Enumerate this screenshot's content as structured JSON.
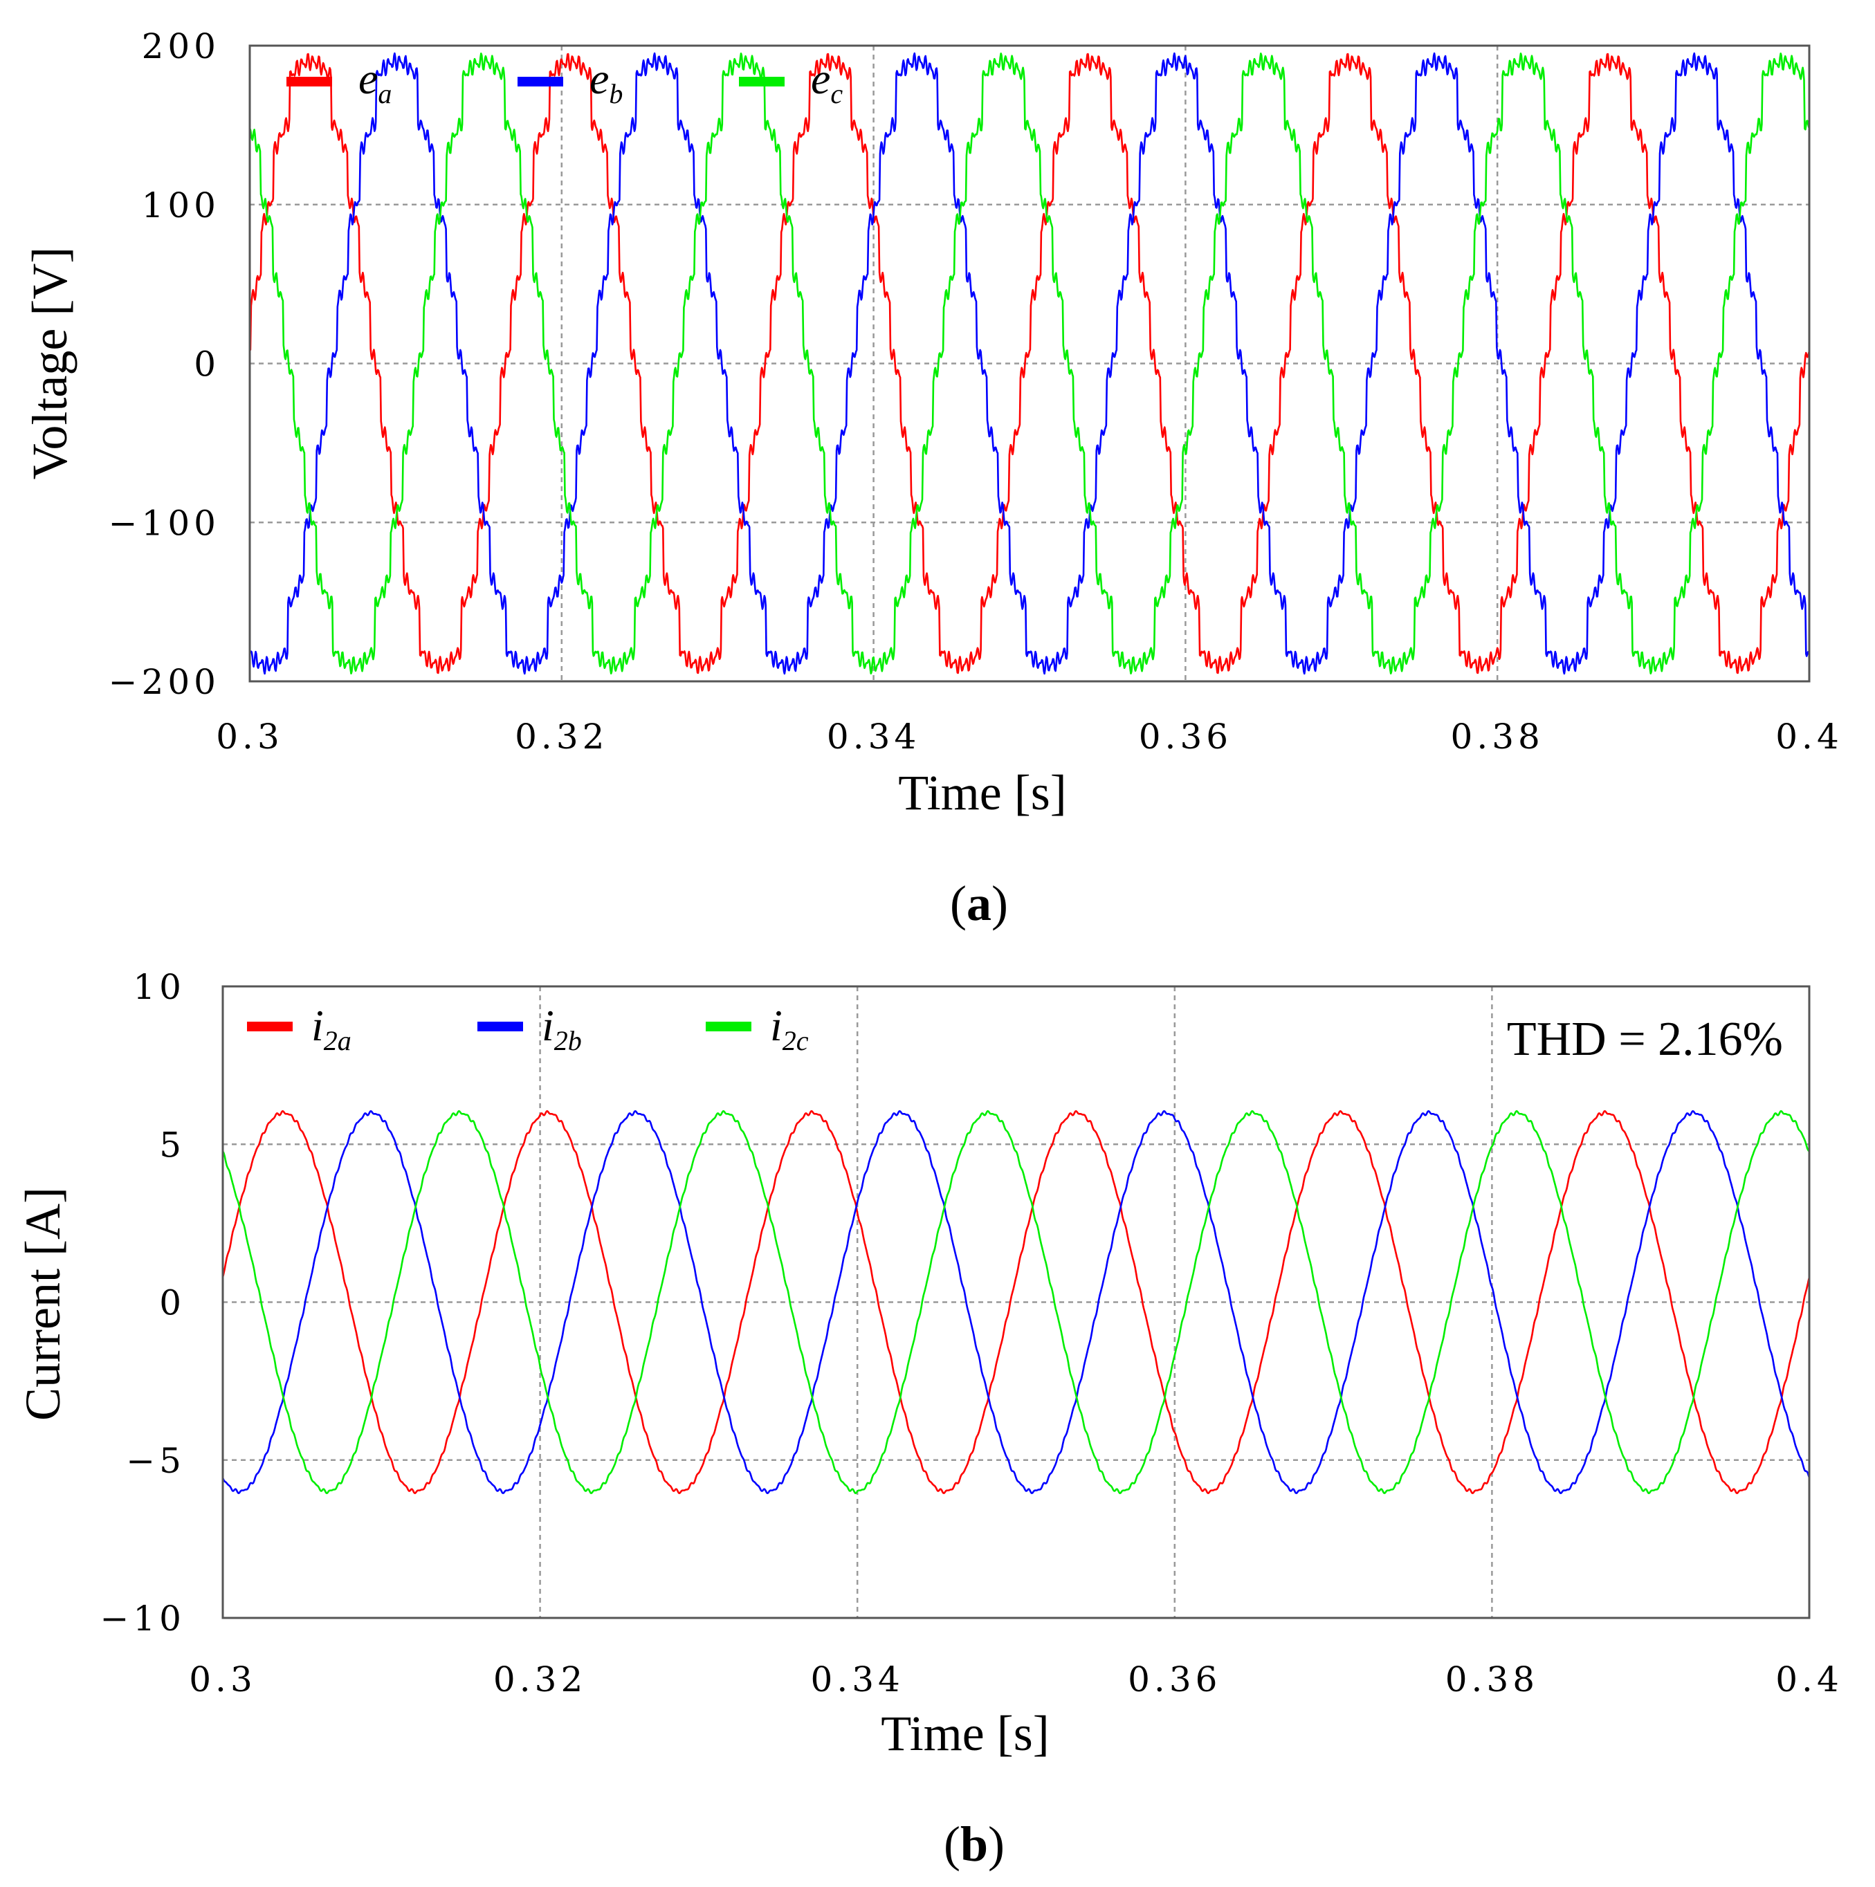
{
  "chart_data": [
    {
      "type": "line",
      "panel": "a",
      "caption": "a",
      "xlabel": "Time [s]",
      "ylabel": "Voltage [V]",
      "xlim": [
        0.3,
        0.4
      ],
      "ylim": [
        -200,
        200
      ],
      "xticks": [
        "0.3",
        "0.32",
        "0.34",
        "0.36",
        "0.38",
        "0.4"
      ],
      "yticks": [
        "200",
        "100",
        "0",
        "−100",
        "−200"
      ],
      "grid": true,
      "legend_position": "top-left",
      "waveform": {
        "amplitude": 190,
        "frequency_hz": 60,
        "shape": "stepped multilevel",
        "phase_a_at_0.3s": 20
      },
      "series": [
        {
          "name": "ea",
          "symbol": "e",
          "subscript": "a",
          "color": "#ff0000",
          "phase_deg": 0
        },
        {
          "name": "eb",
          "symbol": "e",
          "subscript": "b",
          "color": "#0000ff",
          "phase_deg": -120
        },
        {
          "name": "ec",
          "symbol": "e",
          "subscript": "c",
          "color": "#00ee00",
          "phase_deg": 120
        }
      ]
    },
    {
      "type": "line",
      "panel": "b",
      "caption": "b",
      "xlabel": "Time [s]",
      "ylabel": "Current [A]",
      "xlim": [
        0.3,
        0.4
      ],
      "ylim": [
        -10,
        10
      ],
      "xticks": [
        "0.3",
        "0.32",
        "0.34",
        "0.36",
        "0.38",
        "0.4"
      ],
      "yticks": [
        "10",
        "5",
        "0",
        "−5",
        "−10"
      ],
      "grid": true,
      "legend_position": "top-left",
      "annotation": "THD = 2.16%",
      "waveform": {
        "amplitude": 6,
        "frequency_hz": 60,
        "shape": "sinusoidal",
        "phase_a_at_0.3s": 0.8
      },
      "series": [
        {
          "name": "i2a",
          "symbol": "i",
          "subscript": "2a",
          "color": "#ff0000",
          "phase_deg": 0
        },
        {
          "name": "i2b",
          "symbol": "i",
          "subscript": "2b",
          "color": "#0000ff",
          "phase_deg": -120
        },
        {
          "name": "i2c",
          "symbol": "i",
          "subscript": "2c",
          "color": "#00ee00",
          "phase_deg": 120
        }
      ]
    }
  ]
}
